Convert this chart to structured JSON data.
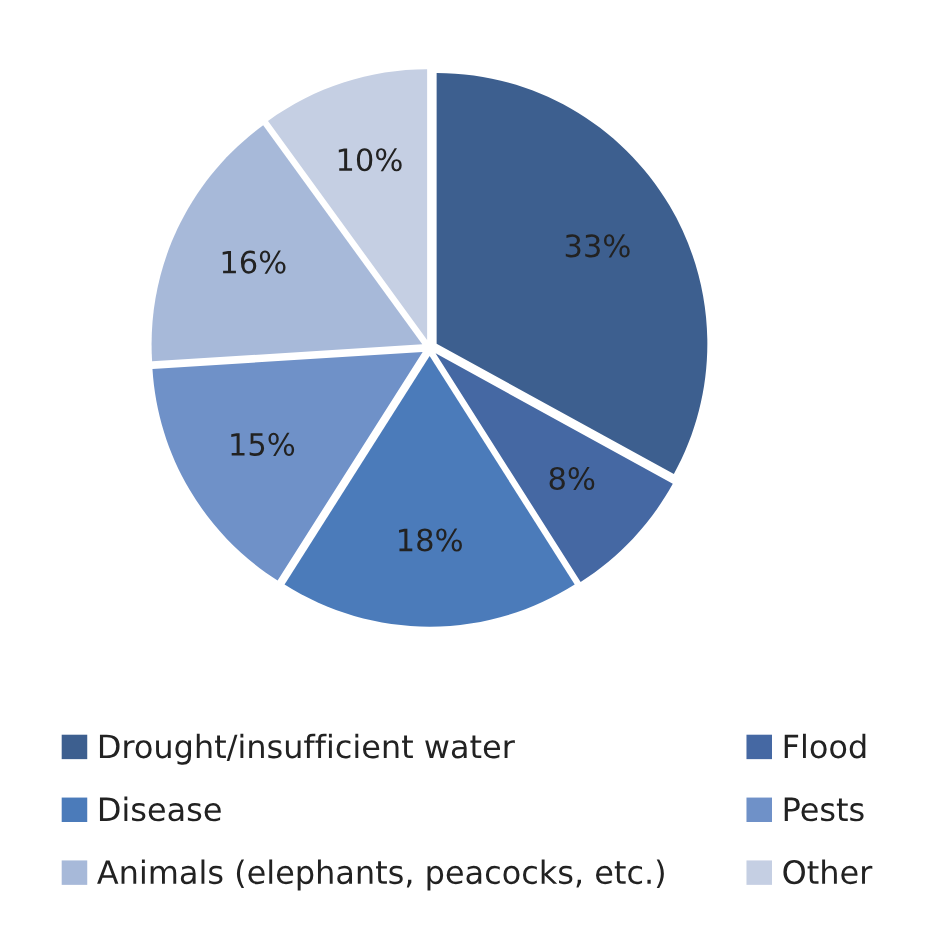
{
  "chart_data": {
    "type": "pie",
    "categories": [
      "Drought/insufficient water",
      "Flood",
      "Disease",
      "Pests",
      "Animals (elephants, peacocks, etc.)",
      "Other"
    ],
    "values": [
      33,
      8,
      18,
      15,
      16,
      10
    ],
    "colors": [
      "#3d5f8f",
      "#4568a3",
      "#4b7bba",
      "#6f91c8",
      "#a7b9d9",
      "#c5cfe3"
    ],
    "value_labels": [
      "33%",
      "8%",
      "18%",
      "15%",
      "16%",
      "10%"
    ],
    "legend": "bottom"
  }
}
